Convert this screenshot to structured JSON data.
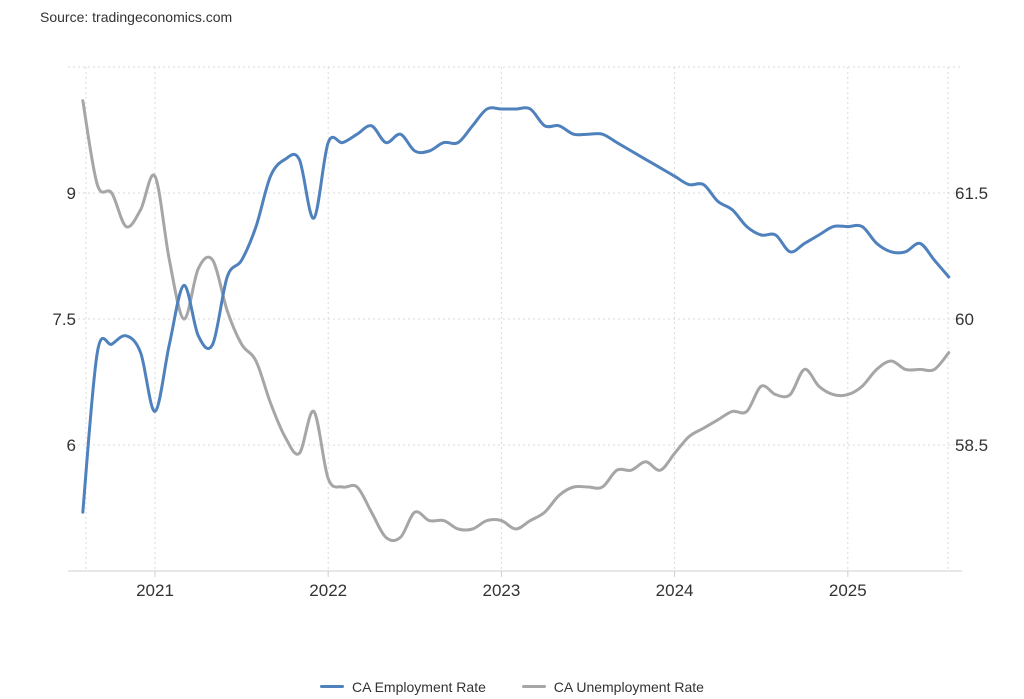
{
  "source": "Source: tradingeconomics.com",
  "chart_data": {
    "type": "line",
    "title": "",
    "x_ticks": [
      "2021",
      "2022",
      "2023",
      "2024",
      "2025"
    ],
    "left_axis": {
      "ticks": [
        "6",
        "7.5",
        "9"
      ],
      "range": [
        4.5,
        10.5
      ]
    },
    "right_axis": {
      "ticks": [
        "58.5",
        "60",
        "61.5"
      ],
      "range": [
        57,
        63
      ]
    },
    "grid": true,
    "legend_position": "bottom",
    "series": [
      {
        "name": "CA Employment Rate",
        "axis": "right",
        "color": "#4f81bd",
        "x": [
          "2020-08",
          "2020-09",
          "2020-10",
          "2020-11",
          "2020-12",
          "2021-01",
          "2021-02",
          "2021-03",
          "2021-04",
          "2021-05",
          "2021-06",
          "2021-07",
          "2021-08",
          "2021-09",
          "2021-10",
          "2021-11",
          "2021-12",
          "2022-01",
          "2022-02",
          "2022-03",
          "2022-04",
          "2022-05",
          "2022-06",
          "2022-07",
          "2022-08",
          "2022-09",
          "2022-10",
          "2022-11",
          "2022-12",
          "2023-01",
          "2023-02",
          "2023-03",
          "2023-04",
          "2023-05",
          "2023-06",
          "2023-07",
          "2023-08",
          "2023-09",
          "2023-10",
          "2023-11",
          "2023-12",
          "2024-01",
          "2024-02",
          "2024-03",
          "2024-04",
          "2024-05",
          "2024-06",
          "2024-07",
          "2024-08",
          "2024-09",
          "2024-10",
          "2024-11",
          "2024-12",
          "2025-01",
          "2025-02",
          "2025-03",
          "2025-04",
          "2025-05",
          "2025-06",
          "2025-07",
          "2025-08"
        ],
        "values": [
          57.7,
          59.6,
          59.7,
          59.8,
          59.6,
          58.9,
          59.7,
          60.4,
          59.8,
          59.7,
          60.5,
          60.7,
          61.1,
          61.7,
          61.9,
          61.9,
          61.2,
          62.1,
          62.1,
          62.2,
          62.3,
          62.1,
          62.2,
          62.0,
          62.0,
          62.1,
          62.1,
          62.3,
          62.5,
          62.5,
          62.5,
          62.5,
          62.3,
          62.3,
          62.2,
          62.2,
          62.2,
          62.1,
          62.0,
          61.9,
          61.8,
          61.7,
          61.6,
          61.6,
          61.4,
          61.3,
          61.1,
          61.0,
          61.0,
          60.8,
          60.9,
          61.0,
          61.1,
          61.1,
          61.1,
          60.9,
          60.8,
          60.8,
          60.9,
          60.7,
          60.5
        ]
      },
      {
        "name": "CA Unemployment Rate",
        "axis": "left",
        "color": "#a6a6a6",
        "x": [
          "2020-08",
          "2020-09",
          "2020-10",
          "2020-11",
          "2020-12",
          "2021-01",
          "2021-02",
          "2021-03",
          "2021-04",
          "2021-05",
          "2021-06",
          "2021-07",
          "2021-08",
          "2021-09",
          "2021-10",
          "2021-11",
          "2021-12",
          "2022-01",
          "2022-02",
          "2022-03",
          "2022-04",
          "2022-05",
          "2022-06",
          "2022-07",
          "2022-08",
          "2022-09",
          "2022-10",
          "2022-11",
          "2022-12",
          "2023-01",
          "2023-02",
          "2023-03",
          "2023-04",
          "2023-05",
          "2023-06",
          "2023-07",
          "2023-08",
          "2023-09",
          "2023-10",
          "2023-11",
          "2023-12",
          "2024-01",
          "2024-02",
          "2024-03",
          "2024-04",
          "2024-05",
          "2024-06",
          "2024-07",
          "2024-08",
          "2024-09",
          "2024-10",
          "2024-11",
          "2024-12",
          "2025-01",
          "2025-02",
          "2025-03",
          "2025-04",
          "2025-05",
          "2025-06",
          "2025-07",
          "2025-08"
        ],
        "values": [
          10.1,
          9.1,
          9.0,
          8.6,
          8.8,
          9.2,
          8.2,
          7.5,
          8.1,
          8.2,
          7.6,
          7.2,
          7.0,
          6.5,
          6.1,
          5.9,
          6.4,
          5.6,
          5.5,
          5.5,
          5.2,
          4.9,
          4.9,
          5.2,
          5.1,
          5.1,
          5.0,
          5.0,
          5.1,
          5.1,
          5.0,
          5.1,
          5.2,
          5.4,
          5.5,
          5.5,
          5.5,
          5.7,
          5.7,
          5.8,
          5.7,
          5.9,
          6.1,
          6.2,
          6.3,
          6.4,
          6.4,
          6.7,
          6.6,
          6.6,
          6.9,
          6.7,
          6.6,
          6.6,
          6.7,
          6.9,
          7.0,
          6.9,
          6.9,
          6.9,
          7.1
        ]
      }
    ]
  }
}
